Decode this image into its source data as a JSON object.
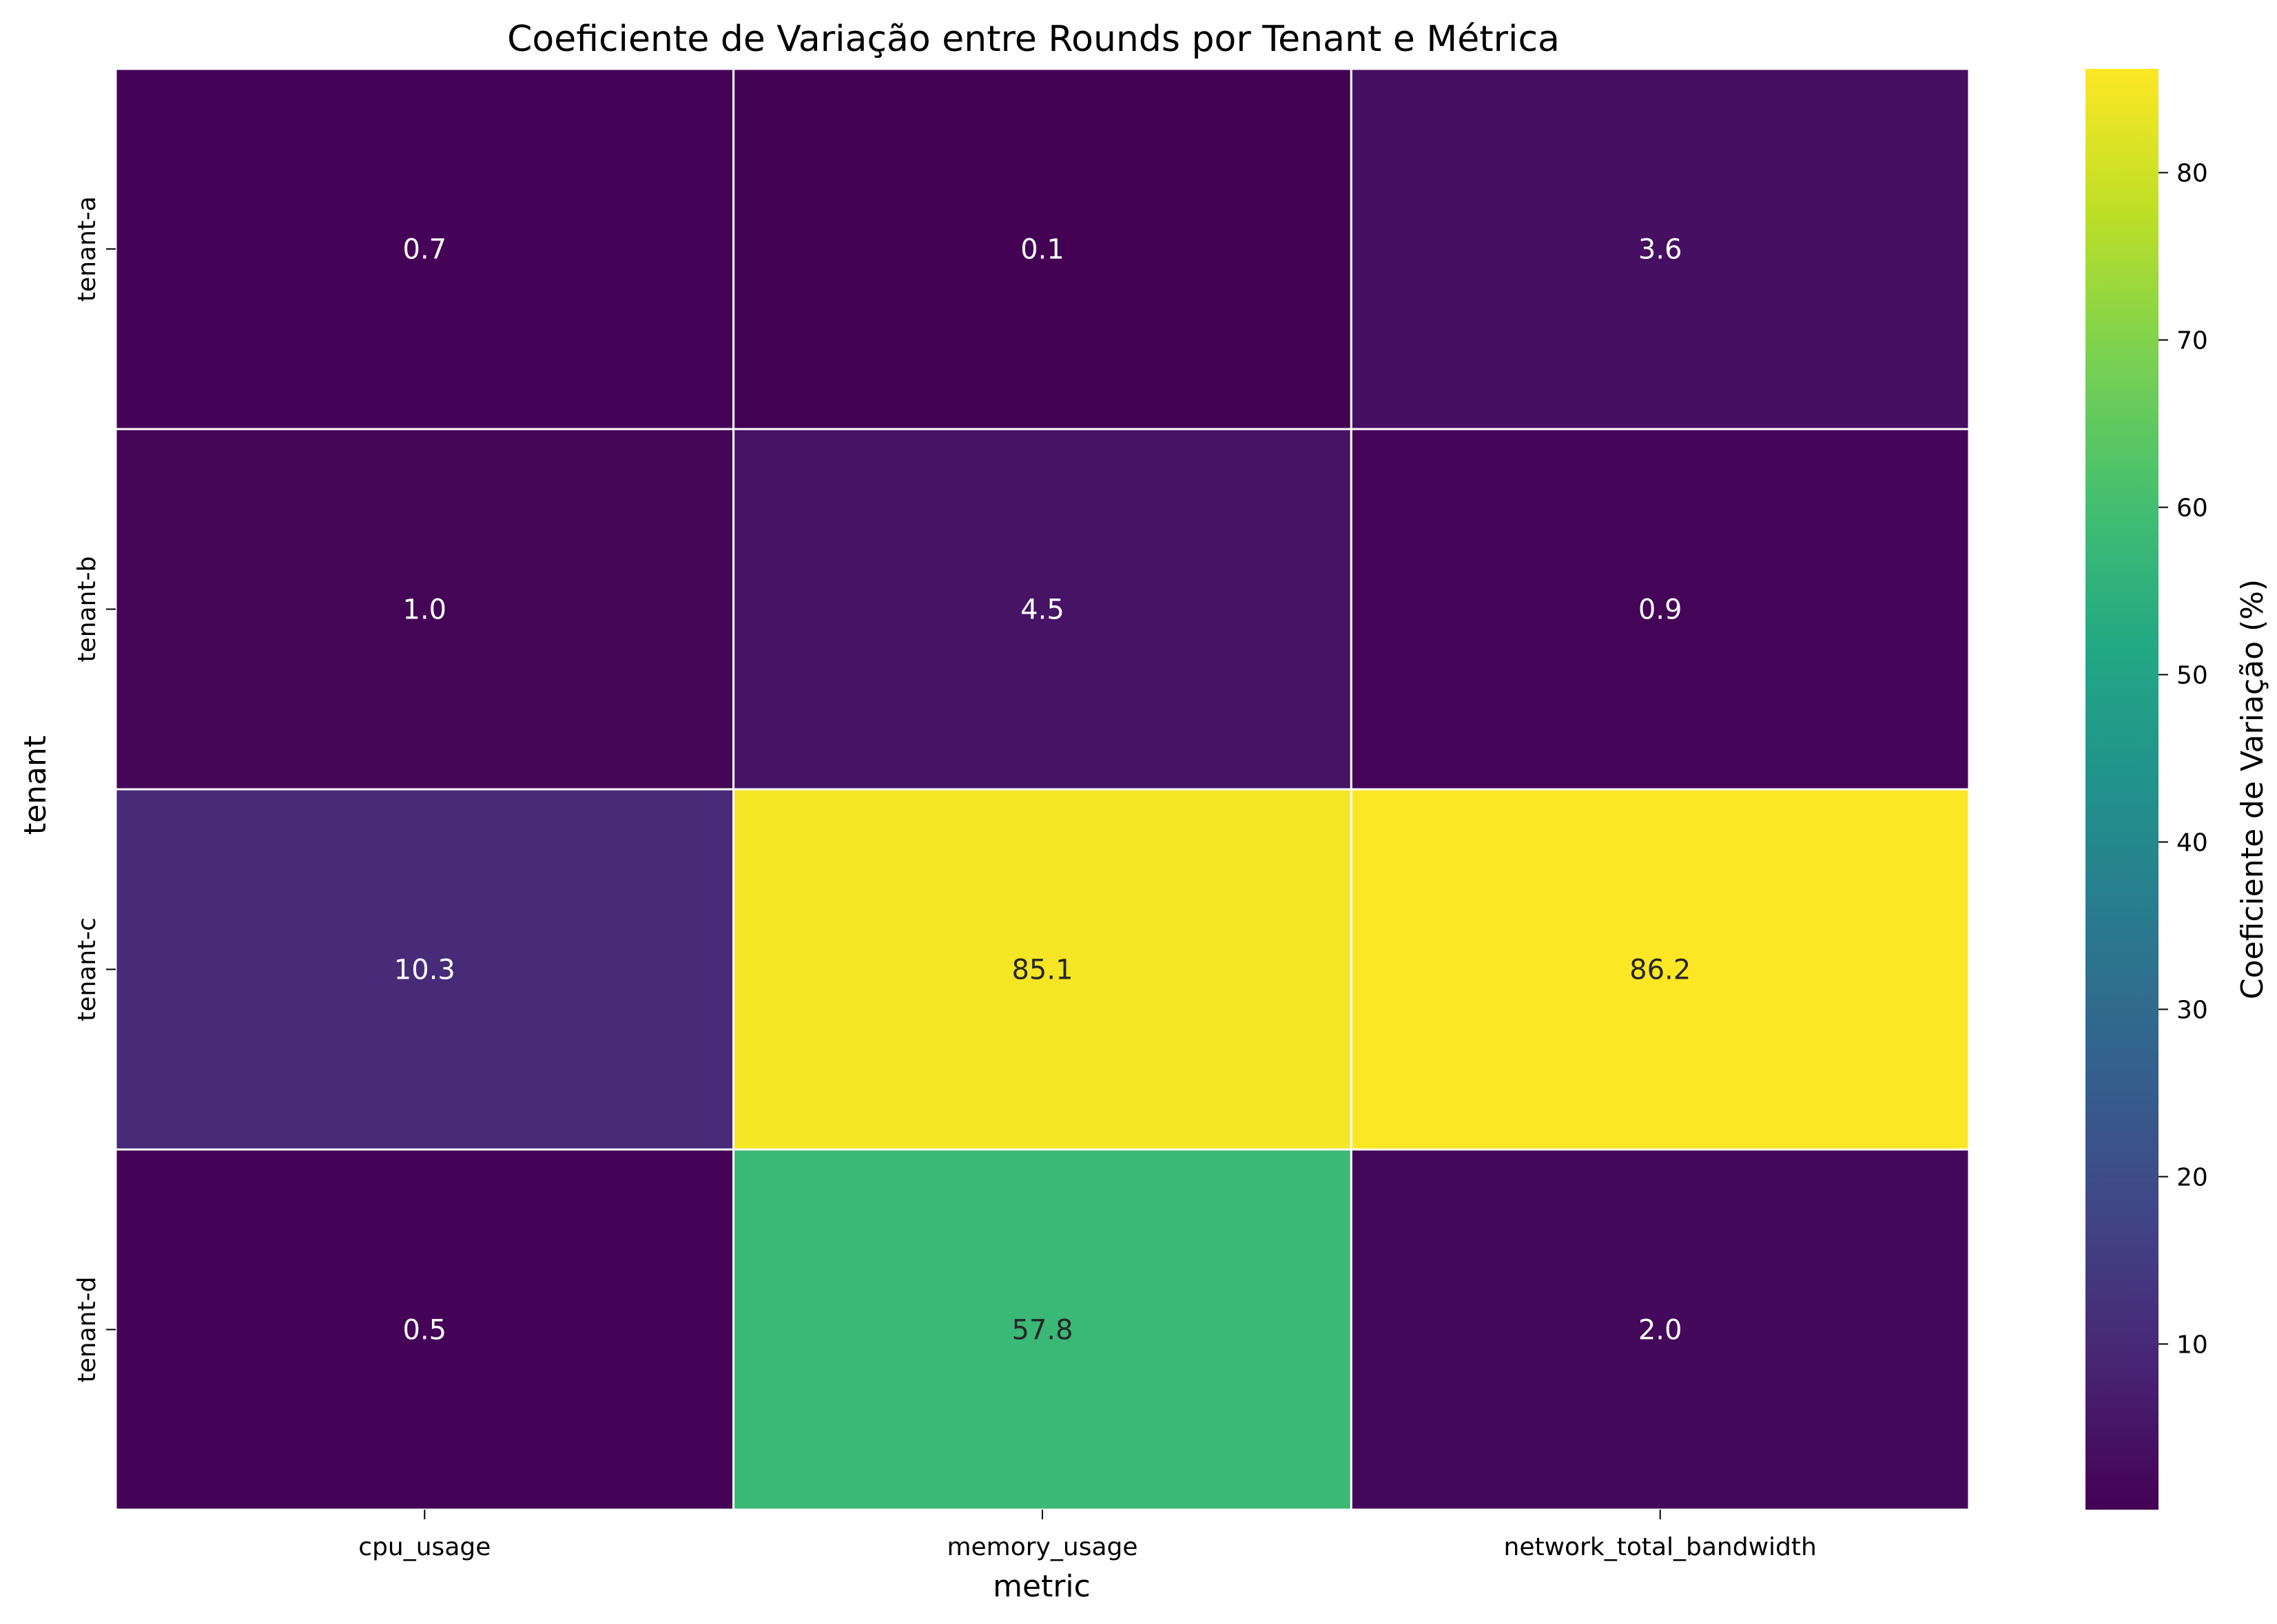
{
  "chart_data": {
    "type": "heatmap",
    "title": "Coeficiente de Variação entre Rounds por Tenant e Métrica",
    "xlabel": "metric",
    "ylabel": "tenant",
    "x_categories": [
      "cpu_usage",
      "memory_usage",
      "network_total_bandwidth"
    ],
    "y_categories": [
      "tenant-a",
      "tenant-b",
      "tenant-c",
      "tenant-d"
    ],
    "values": [
      [
        0.7,
        0.1,
        3.6
      ],
      [
        1.0,
        4.5,
        0.9
      ],
      [
        10.3,
        85.1,
        86.2
      ],
      [
        0.5,
        57.8,
        2.0
      ]
    ],
    "value_labels": [
      [
        "0.7",
        "0.1",
        "3.6"
      ],
      [
        "1.0",
        "4.5",
        "0.9"
      ],
      [
        "10.3",
        "85.1",
        "86.2"
      ],
      [
        "0.5",
        "57.8",
        "2.0"
      ]
    ],
    "colormap": "viridis",
    "colorbar": {
      "label": "Coeficiente de Variação (%)",
      "range": [
        0.1,
        86.2
      ],
      "ticks": [
        10,
        20,
        30,
        40,
        50,
        60,
        70,
        80
      ],
      "tick_labels": [
        "10",
        "20",
        "30",
        "40",
        "50",
        "60",
        "70",
        "80"
      ]
    },
    "grid_line_color": "#ffffff"
  }
}
